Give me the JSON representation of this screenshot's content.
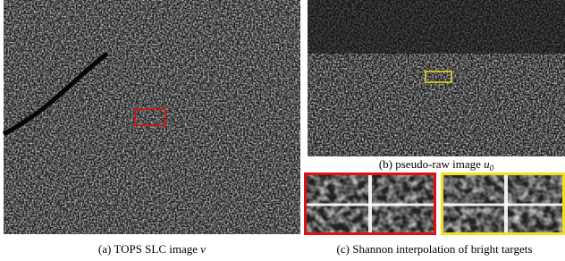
{
  "captions": {
    "a": {
      "text": "(a) TOPS SLC image",
      "symbol": "v"
    },
    "b": {
      "text": "(b) pseudo-raw image",
      "symbol": "u",
      "subscript": "0"
    },
    "c": {
      "text": "(c) Shannon interpolation of bright targets"
    }
  }
}
